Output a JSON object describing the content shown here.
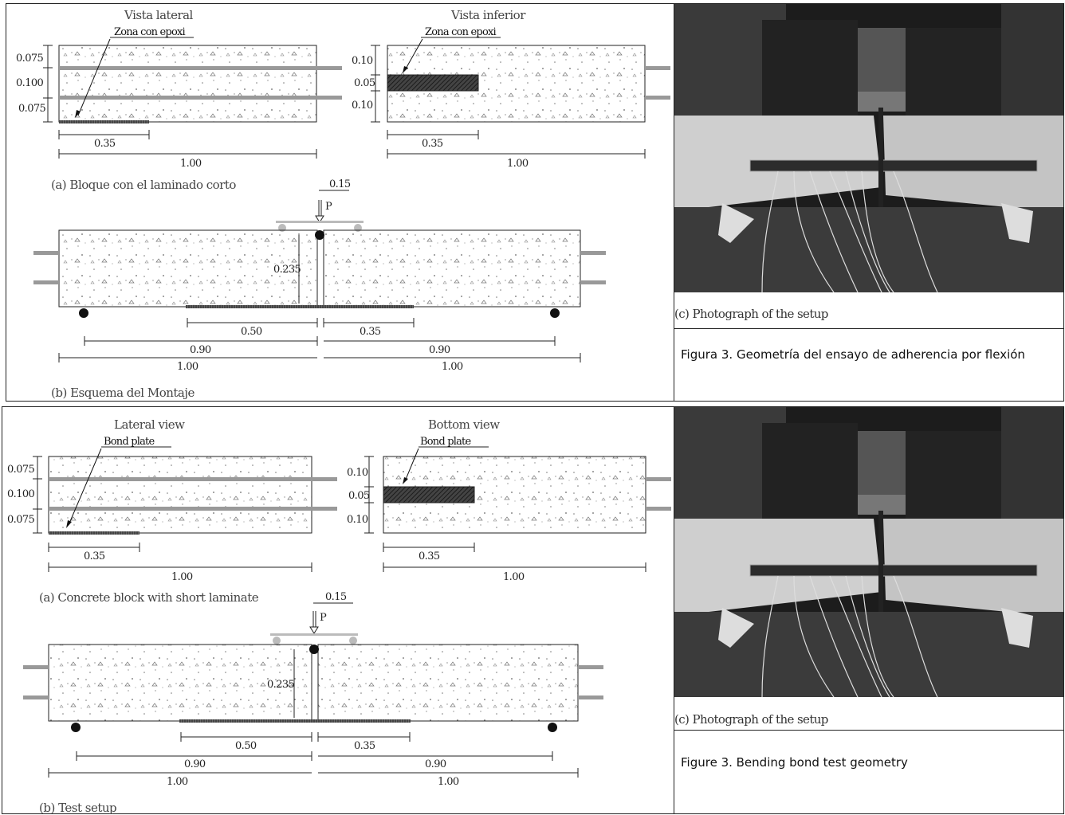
{
  "top": {
    "view_left_title": "Vista lateral",
    "view_right_title": "Vista inferior",
    "epoxy_left": "Zona con epoxi",
    "epoxy_right": "Zona con epoxi",
    "left_dims": [
      "0.075",
      "0.100",
      "0.075"
    ],
    "right_dims": [
      "0.10",
      "0.05",
      "0.10"
    ],
    "dim_035": "0.35",
    "dim_100": "1.00",
    "caption_a": "(a) Bloque con el laminado corto",
    "load_offset": "0.15",
    "load_label": "P",
    "height_label": "0.235",
    "dim_050": "0.50",
    "dim_035b": "0.35",
    "dim_090": "0.90",
    "caption_b": "(b) Esquema del Montaje",
    "photo_caption": "(c) Photograph of the setup",
    "figure_caption": "Figura 3. Geometría del ensayo de adherencia por flexión"
  },
  "bottom": {
    "view_left_title": "Lateral view",
    "view_right_title": "Bottom view",
    "epoxy_left": "Bond plate",
    "epoxy_right": "Bond plate",
    "left_dims": [
      "0.075",
      "0.100",
      "0.075"
    ],
    "right_dims": [
      "0.10",
      "0.05",
      "0.10"
    ],
    "dim_035": "0.35",
    "dim_100": "1.00",
    "caption_a": "(a) Concrete block with short laminate",
    "load_offset": "0.15",
    "load_label": "P",
    "height_label": "0.235",
    "dim_050": "0.50",
    "dim_035b": "0.35",
    "dim_090": "0.90",
    "caption_b": "(b) Test setup",
    "photo_caption": "(c) Photograph of the setup",
    "figure_caption": "Figure 3. Bending bond test geometry"
  },
  "colors": {
    "frame": "#222222",
    "concrete_dots": "#888888",
    "laminate": "#333333",
    "photo_dark": "#1f1f1f",
    "photo_concrete": "#c9c9c9"
  }
}
